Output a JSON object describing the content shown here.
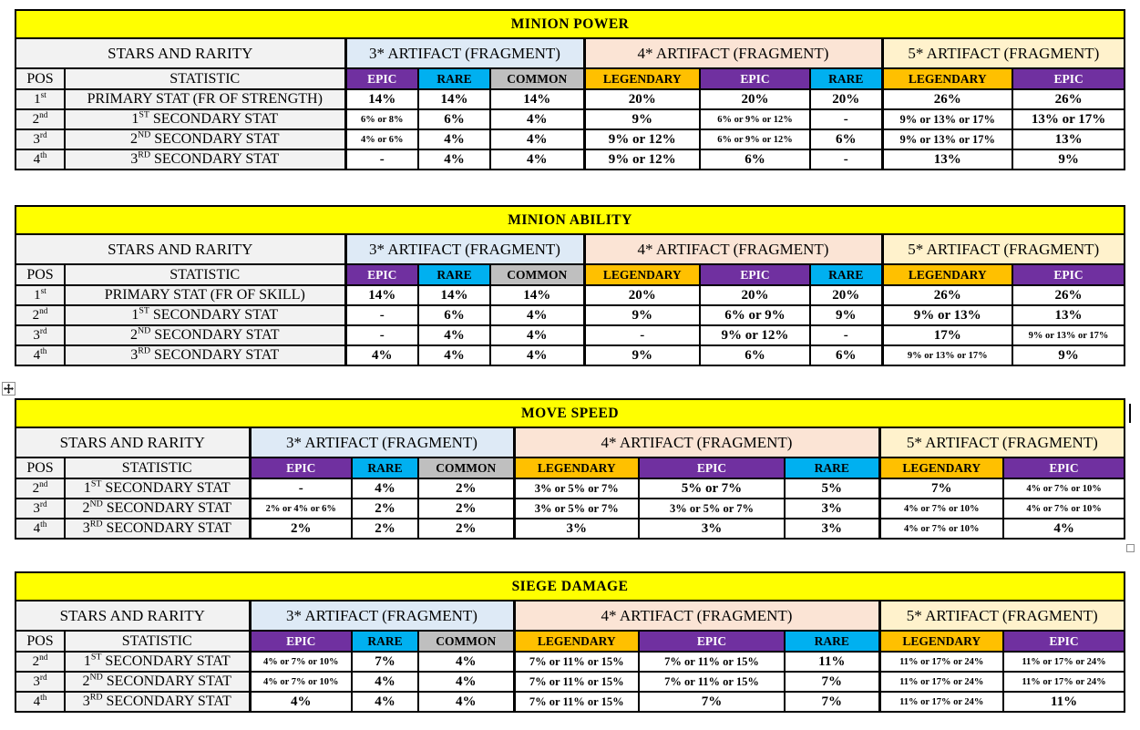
{
  "shared": {
    "stars_and_rarity": "STARS AND RARITY",
    "pos_header": "POS",
    "statistic_header": "STATISTIC",
    "star_groups": [
      "3* ARTIFACT (FRAGMENT)",
      "4* ARTIFACT (FRAGMENT)",
      "5* ARTIFACT (FRAGMENT)"
    ]
  },
  "colors": {
    "title_bg": "#FFFF00",
    "epic_bg": "#7030A0",
    "rare_bg": "#00B0F0",
    "common_bg": "#BFBFBF",
    "legendary_bg": "#FFC000",
    "star3_bg": "#DEEAF6",
    "star4_bg": "#FBE4D5",
    "star5_bg": "#FFF2CC",
    "label_bg": "#F2F2F2"
  },
  "icons": {
    "move_handle": "move-four-arrows-icon",
    "resize_handle": "table-resize-handle",
    "text_cursor": "text-cursor-bar"
  },
  "tables": [
    {
      "title": "MINION POWER",
      "rarities": [
        {
          "label": "EPIC"
        },
        {
          "label": "RARE"
        },
        {
          "label": "COMMON"
        },
        {
          "label": "LEGENDARY"
        },
        {
          "label": "EPIC"
        },
        {
          "label": "RARE"
        },
        {
          "label": "LEGENDARY"
        },
        {
          "label": "EPIC"
        }
      ],
      "rows": [
        {
          "pos": {
            "num": "1",
            "sup": "st"
          },
          "stat": {
            "pre": "PRIMARY STAT (FR OF STRENGTH)",
            "sup": "",
            "post": ""
          },
          "values": [
            {
              "v": "14%",
              "s": "n"
            },
            {
              "v": "14%",
              "s": "n"
            },
            {
              "v": "14%",
              "s": "n"
            },
            {
              "v": "20%",
              "s": "n"
            },
            {
              "v": "20%",
              "s": "n"
            },
            {
              "v": "20%",
              "s": "n"
            },
            {
              "v": "26%",
              "s": "n"
            },
            {
              "v": "26%",
              "s": "n"
            }
          ]
        },
        {
          "pos": {
            "num": "2",
            "sup": "nd"
          },
          "stat": {
            "pre": "1",
            "sup": "ST",
            "post": " SECONDARY STAT"
          },
          "values": [
            {
              "v": "6% or 8%",
              "s": "sm"
            },
            {
              "v": "6%",
              "s": "n"
            },
            {
              "v": "4%",
              "s": "n"
            },
            {
              "v": "9%",
              "s": "n"
            },
            {
              "v": "6% or 9% or 12%",
              "s": "sm"
            },
            {
              "v": "-",
              "s": "n"
            },
            {
              "v": "9% or 13% or 17%",
              "s": "md"
            },
            {
              "v": "13% or 17%",
              "s": "n"
            }
          ]
        },
        {
          "pos": {
            "num": "3",
            "sup": "rd"
          },
          "stat": {
            "pre": "2",
            "sup": "ND",
            "post": " SECONDARY STAT"
          },
          "values": [
            {
              "v": "4% or 6%",
              "s": "sm"
            },
            {
              "v": "4%",
              "s": "n"
            },
            {
              "v": "4%",
              "s": "n"
            },
            {
              "v": "9% or 12%",
              "s": "n"
            },
            {
              "v": "6% or 9% or 12%",
              "s": "sm"
            },
            {
              "v": "6%",
              "s": "n"
            },
            {
              "v": "9% or 13% or 17%",
              "s": "md"
            },
            {
              "v": "13%",
              "s": "n"
            }
          ]
        },
        {
          "pos": {
            "num": "4",
            "sup": "th"
          },
          "stat": {
            "pre": "3",
            "sup": "RD",
            "post": " SECONDARY STAT"
          },
          "values": [
            {
              "v": "-",
              "s": "n"
            },
            {
              "v": "4%",
              "s": "n"
            },
            {
              "v": "4%",
              "s": "n"
            },
            {
              "v": "9% or 12%",
              "s": "n"
            },
            {
              "v": "6%",
              "s": "n"
            },
            {
              "v": "-",
              "s": "n"
            },
            {
              "v": "13%",
              "s": "n"
            },
            {
              "v": "9%",
              "s": "n"
            }
          ]
        }
      ]
    },
    {
      "title": "MINION ABILITY",
      "rarities": [
        {
          "label": "EPIC"
        },
        {
          "label": "RARE"
        },
        {
          "label": "COMMON"
        },
        {
          "label": "LEGENDARY"
        },
        {
          "label": "EPIC"
        },
        {
          "label": "RARE"
        },
        {
          "label": "LEGENDARY"
        },
        {
          "label": "EPIC"
        }
      ],
      "rows": [
        {
          "pos": {
            "num": "1",
            "sup": "st"
          },
          "stat": {
            "pre": "PRIMARY STAT (FR OF SKILL)",
            "sup": "",
            "post": ""
          },
          "values": [
            {
              "v": "14%",
              "s": "n"
            },
            {
              "v": "14%",
              "s": "n"
            },
            {
              "v": "14%",
              "s": "n"
            },
            {
              "v": "20%",
              "s": "n"
            },
            {
              "v": "20%",
              "s": "n"
            },
            {
              "v": "20%",
              "s": "n"
            },
            {
              "v": "26%",
              "s": "n"
            },
            {
              "v": "26%",
              "s": "n"
            }
          ]
        },
        {
          "pos": {
            "num": "2",
            "sup": "nd"
          },
          "stat": {
            "pre": "1",
            "sup": "ST",
            "post": " SECONDARY STAT"
          },
          "values": [
            {
              "v": "-",
              "s": "n"
            },
            {
              "v": "6%",
              "s": "n"
            },
            {
              "v": "4%",
              "s": "n"
            },
            {
              "v": "9%",
              "s": "n"
            },
            {
              "v": "6% or 9%",
              "s": "n"
            },
            {
              "v": "9%",
              "s": "n"
            },
            {
              "v": "9% or 13%",
              "s": "n"
            },
            {
              "v": "13%",
              "s": "n"
            }
          ]
        },
        {
          "pos": {
            "num": "3",
            "sup": "rd"
          },
          "stat": {
            "pre": "2",
            "sup": "ND",
            "post": " SECONDARY STAT"
          },
          "values": [
            {
              "v": "-",
              "s": "n"
            },
            {
              "v": "4%",
              "s": "n"
            },
            {
              "v": "4%",
              "s": "n"
            },
            {
              "v": "-",
              "s": "n"
            },
            {
              "v": "9% or 12%",
              "s": "n"
            },
            {
              "v": "-",
              "s": "n"
            },
            {
              "v": "17%",
              "s": "n"
            },
            {
              "v": "9% or 13% or 17%",
              "s": "sm"
            }
          ]
        },
        {
          "pos": {
            "num": "4",
            "sup": "th"
          },
          "stat": {
            "pre": "3",
            "sup": "RD",
            "post": " SECONDARY STAT"
          },
          "values": [
            {
              "v": "4%",
              "s": "n"
            },
            {
              "v": "4%",
              "s": "n"
            },
            {
              "v": "4%",
              "s": "n"
            },
            {
              "v": "9%",
              "s": "n"
            },
            {
              "v": "6%",
              "s": "n"
            },
            {
              "v": "6%",
              "s": "n"
            },
            {
              "v": "9% or 13% or 17%",
              "s": "sm"
            },
            {
              "v": "9%",
              "s": "n"
            }
          ]
        }
      ]
    },
    {
      "title": "MOVE SPEED",
      "rarities": [
        {
          "label": "EPIC"
        },
        {
          "label": "RARE"
        },
        {
          "label": "COMMON"
        },
        {
          "label": "LEGENDARY"
        },
        {
          "label": "EPIC"
        },
        {
          "label": "RARE"
        },
        {
          "label": "LEGENDARY"
        },
        {
          "label": "EPIC"
        }
      ],
      "rows": [
        {
          "pos": {
            "num": "2",
            "sup": "nd"
          },
          "stat": {
            "pre": "1",
            "sup": "ST",
            "post": " SECONDARY STAT"
          },
          "values": [
            {
              "v": "-",
              "s": "n"
            },
            {
              "v": "4%",
              "s": "n"
            },
            {
              "v": "2%",
              "s": "n"
            },
            {
              "v": "3% or 5% or 7%",
              "s": "md"
            },
            {
              "v": "5% or 7%",
              "s": "n"
            },
            {
              "v": "5%",
              "s": "n"
            },
            {
              "v": "7%",
              "s": "n"
            },
            {
              "v": "4% or 7% or 10%",
              "s": "sm"
            }
          ]
        },
        {
          "pos": {
            "num": "3",
            "sup": "rd"
          },
          "stat": {
            "pre": "2",
            "sup": "ND",
            "post": " SECONDARY STAT"
          },
          "values": [
            {
              "v": "2% or 4% or 6%",
              "s": "sm"
            },
            {
              "v": "2%",
              "s": "n"
            },
            {
              "v": "2%",
              "s": "n"
            },
            {
              "v": "3% or 5% or 7%",
              "s": "md"
            },
            {
              "v": "3% or 5% or 7%",
              "s": "md"
            },
            {
              "v": "3%",
              "s": "n"
            },
            {
              "v": "4% or 7% or 10%",
              "s": "sm"
            },
            {
              "v": "4% or 7% or 10%",
              "s": "sm"
            }
          ]
        },
        {
          "pos": {
            "num": "4",
            "sup": "th"
          },
          "stat": {
            "pre": "3",
            "sup": "RD",
            "post": " SECONDARY STAT"
          },
          "values": [
            {
              "v": "2%",
              "s": "n"
            },
            {
              "v": "2%",
              "s": "n"
            },
            {
              "v": "2%",
              "s": "n"
            },
            {
              "v": "3%",
              "s": "n"
            },
            {
              "v": "3%",
              "s": "n"
            },
            {
              "v": "3%",
              "s": "n"
            },
            {
              "v": "4% or 7% or 10%",
              "s": "sm"
            },
            {
              "v": "4%",
              "s": "n"
            }
          ]
        }
      ]
    },
    {
      "title": "SIEGE DAMAGE",
      "rarities": [
        {
          "label": "EPIC"
        },
        {
          "label": "RARE"
        },
        {
          "label": "COMMON"
        },
        {
          "label": "LEGENDARY"
        },
        {
          "label": "EPIC"
        },
        {
          "label": "RARE"
        },
        {
          "label": "LEGENDARY"
        },
        {
          "label": "EPIC"
        }
      ],
      "rows": [
        {
          "pos": {
            "num": "2",
            "sup": "nd"
          },
          "stat": {
            "pre": "1",
            "sup": "ST",
            "post": " SECONDARY STAT"
          },
          "values": [
            {
              "v": "4% or 7% or 10%",
              "s": "sm"
            },
            {
              "v": "7%",
              "s": "n"
            },
            {
              "v": "4%",
              "s": "n"
            },
            {
              "v": "7% or 11% or 15%",
              "s": "md"
            },
            {
              "v": "7% or 11% or 15%",
              "s": "md"
            },
            {
              "v": "11%",
              "s": "n"
            },
            {
              "v": "11% or 17% or 24%",
              "s": "sm"
            },
            {
              "v": "11% or 17% or 24%",
              "s": "sm"
            }
          ]
        },
        {
          "pos": {
            "num": "3",
            "sup": "rd"
          },
          "stat": {
            "pre": "2",
            "sup": "ND",
            "post": " SECONDARY STAT"
          },
          "values": [
            {
              "v": "4% or 7% or 10%",
              "s": "sm"
            },
            {
              "v": "4%",
              "s": "n"
            },
            {
              "v": "4%",
              "s": "n"
            },
            {
              "v": "7% or 11% or 15%",
              "s": "md"
            },
            {
              "v": "7% or 11% or 15%",
              "s": "md"
            },
            {
              "v": "7%",
              "s": "n"
            },
            {
              "v": "11% or 17% or 24%",
              "s": "sm"
            },
            {
              "v": "11% or 17% or 24%",
              "s": "sm"
            }
          ]
        },
        {
          "pos": {
            "num": "4",
            "sup": "th"
          },
          "stat": {
            "pre": "3",
            "sup": "RD",
            "post": " SECONDARY STAT"
          },
          "values": [
            {
              "v": "4%",
              "s": "n"
            },
            {
              "v": "4%",
              "s": "n"
            },
            {
              "v": "4%",
              "s": "n"
            },
            {
              "v": "7% or 11% or 15%",
              "s": "md"
            },
            {
              "v": "7%",
              "s": "n"
            },
            {
              "v": "7%",
              "s": "n"
            },
            {
              "v": "11% or 17% or 24%",
              "s": "sm"
            },
            {
              "v": "11%",
              "s": "n"
            }
          ]
        }
      ]
    }
  ]
}
